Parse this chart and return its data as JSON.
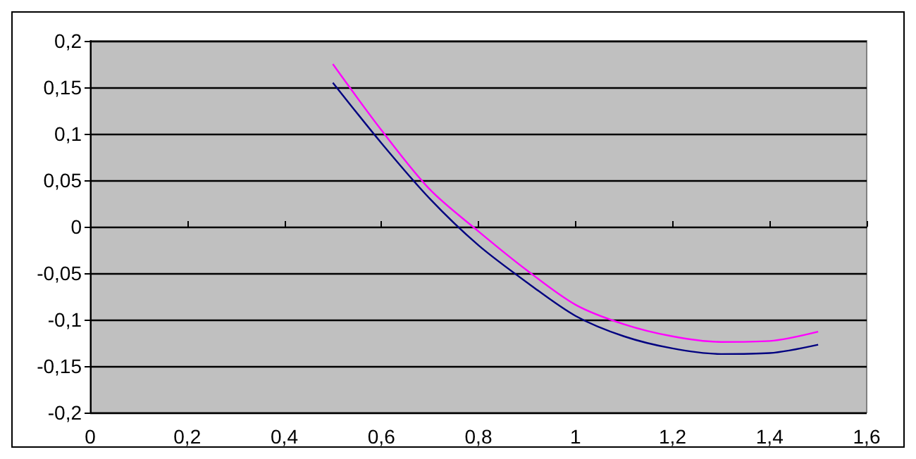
{
  "chart_data": {
    "type": "line",
    "xlim": [
      0,
      1.6
    ],
    "ylim": [
      -0.2,
      0.2
    ],
    "xticks": [
      0,
      {
        "value": 0.2,
        "label": "0,2"
      },
      {
        "value": 0.4,
        "label": "0,4"
      },
      {
        "value": 0.6,
        "label": "0,6"
      },
      {
        "value": 0.8,
        "label": "0,8"
      },
      1,
      {
        "value": 1.2,
        "label": "1,2"
      },
      {
        "value": 1.4,
        "label": "1,4"
      },
      {
        "value": 1.6,
        "label": "1,6"
      }
    ],
    "yticks": [
      {
        "value": -0.2,
        "label": "-0,2"
      },
      {
        "value": -0.15,
        "label": "-0,15"
      },
      {
        "value": -0.1,
        "label": "-0,1"
      },
      {
        "value": -0.05,
        "label": "-0,05"
      },
      0,
      {
        "value": 0.05,
        "label": "0,05"
      },
      {
        "value": 0.1,
        "label": "0,1"
      },
      {
        "value": 0.15,
        "label": "0,15"
      },
      {
        "value": 0.2,
        "label": "0,2"
      }
    ],
    "x": [
      0.5,
      0.6,
      0.7,
      0.8,
      0.9,
      1.0,
      1.1,
      1.2,
      1.3,
      1.4,
      1.5
    ],
    "series": [
      {
        "color": "#000080",
        "values": [
          0.155,
          0.09,
          0.03,
          -0.02,
          -0.06,
          -0.096,
          -0.118,
          -0.131,
          -0.137,
          -0.136,
          -0.127
        ]
      },
      {
        "color": "#ff00ff",
        "values": [
          0.175,
          0.104,
          0.04,
          -0.005,
          -0.047,
          -0.084,
          -0.105,
          -0.118,
          -0.124,
          -0.123,
          -0.113
        ]
      }
    ],
    "grid": "y",
    "marker": "none",
    "line_style": "solid"
  }
}
